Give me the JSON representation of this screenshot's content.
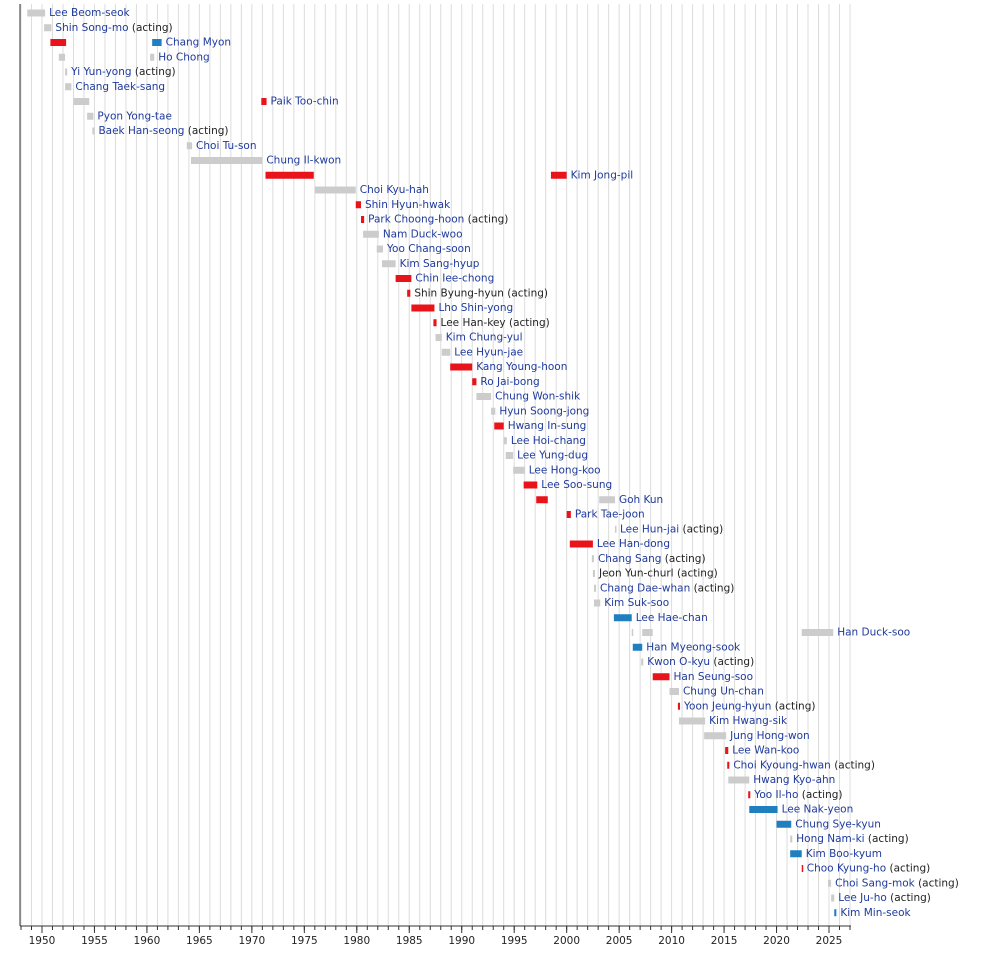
{
  "chart_data": {
    "type": "timeline",
    "xlim": [
      1948,
      2027
    ],
    "xticks": [
      1950,
      1955,
      1960,
      1965,
      1970,
      1975,
      1980,
      1985,
      1990,
      1995,
      2000,
      2005,
      2010,
      2015,
      2020,
      2025
    ],
    "xgrid": [
      1948,
      1949,
      1950,
      1951,
      1952,
      1953,
      1954,
      1955,
      1956,
      1957,
      1958,
      1959,
      1960,
      1961,
      1962,
      1963,
      1964,
      1965,
      1966,
      1967,
      1968,
      1969,
      1970,
      1971,
      1972,
      1973,
      1974,
      1975,
      1976,
      1977,
      1978,
      1979,
      1980,
      1981,
      1982,
      1983,
      1984,
      1985,
      1986,
      1987,
      1988,
      1989,
      1990,
      1991,
      1992,
      1993,
      1994,
      1995,
      1996,
      1997,
      1998,
      1999,
      2000,
      2001,
      2002,
      2003,
      2004,
      2005,
      2006,
      2007,
      2008,
      2009,
      2010,
      2011,
      2012,
      2013,
      2014,
      2015,
      2016,
      2017,
      2018,
      2019,
      2020,
      2021,
      2022,
      2023,
      2024,
      2025,
      2026,
      2027
    ],
    "grid": true,
    "link_color": "#1f3a9c",
    "text_color": "#222222",
    "rows": [
      {
        "name": "Lee Beom-seok",
        "link": true,
        "bars": [
          [
            1948.6,
            1950.3,
            "#cccccc"
          ]
        ]
      },
      {
        "name": "Shin Song-mo",
        "suffix": "(acting)",
        "link": true,
        "bars": [
          [
            1950.2,
            1950.9,
            "#cccccc"
          ]
        ]
      },
      {
        "name": "Chang Myon",
        "link": true,
        "bars": [
          [
            1950.8,
            1952.3,
            "#e8141a"
          ],
          [
            1960.5,
            1961.4,
            "#1f7fbf"
          ]
        ]
      },
      {
        "name": "Ho Chong",
        "link": true,
        "bars": [
          [
            1951.6,
            1952.2,
            "#cccccc"
          ],
          [
            1960.3,
            1960.7,
            "#cccccc"
          ]
        ]
      },
      {
        "name": "Yi Yun-yong",
        "suffix": "(acting)",
        "link": true,
        "bars": [
          [
            1952.2,
            1952.4,
            "#cccccc"
          ]
        ]
      },
      {
        "name": "Chang Taek-sang",
        "link": true,
        "bars": [
          [
            1952.2,
            1952.8,
            "#cccccc"
          ]
        ]
      },
      {
        "name": "Paik Too-chin",
        "link": true,
        "bars": [
          [
            1953.0,
            1954.5,
            "#cccccc"
          ],
          [
            1970.9,
            1971.4,
            "#e8141a"
          ]
        ]
      },
      {
        "name": "Pyon Yong-tae",
        "link": true,
        "bars": [
          [
            1954.3,
            1954.9,
            "#cccccc"
          ]
        ]
      },
      {
        "name": "Baek Han-seong",
        "suffix": "(acting)",
        "link": true,
        "bars": [
          [
            1954.8,
            1955.0,
            "#cccccc"
          ]
        ]
      },
      {
        "name": "Choi Tu-son",
        "link": true,
        "bars": [
          [
            1963.8,
            1964.3,
            "#cccccc"
          ]
        ]
      },
      {
        "name": "Chung Il-kwon",
        "link": true,
        "bars": [
          [
            1964.2,
            1971.0,
            "#cccccc"
          ]
        ]
      },
      {
        "name": "Kim Jong-pil",
        "link": true,
        "bars": [
          [
            1971.3,
            1975.9,
            "#e8141a"
          ],
          [
            1998.5,
            2000.0,
            "#e8141a"
          ]
        ]
      },
      {
        "name": "Choi Kyu-hah",
        "link": true,
        "bars": [
          [
            1976.0,
            1979.9,
            "#cccccc"
          ]
        ]
      },
      {
        "name": "Shin Hyun-hwak",
        "link": true,
        "bars": [
          [
            1979.9,
            1980.4,
            "#e8141a"
          ]
        ]
      },
      {
        "name": "Park Choong-hoon",
        "suffix": "(acting)",
        "link": true,
        "bars": [
          [
            1980.4,
            1980.7,
            "#e8141a"
          ]
        ]
      },
      {
        "name": "Nam Duck-woo",
        "link": true,
        "bars": [
          [
            1980.6,
            1982.1,
            "#cccccc"
          ]
        ]
      },
      {
        "name": "Yoo Chang-soon",
        "link": true,
        "bars": [
          [
            1981.9,
            1982.5,
            "#cccccc"
          ]
        ]
      },
      {
        "name": "Kim Sang-hyup",
        "link": true,
        "bars": [
          [
            1982.4,
            1983.7,
            "#cccccc"
          ]
        ]
      },
      {
        "name": "Chin Iee-chong",
        "link": true,
        "bars": [
          [
            1983.7,
            1985.2,
            "#e8141a"
          ]
        ]
      },
      {
        "name": "Shin Byung-hyun",
        "suffix": "(acting)",
        "link": false,
        "bars": [
          [
            1984.8,
            1985.1,
            "#e8141a"
          ]
        ]
      },
      {
        "name": "Lho Shin-yong",
        "link": true,
        "bars": [
          [
            1985.2,
            1987.4,
            "#e8141a"
          ]
        ]
      },
      {
        "name": "Lee Han-key",
        "suffix": "(acting)",
        "link": false,
        "bars": [
          [
            1987.3,
            1987.6,
            "#e8141a"
          ]
        ]
      },
      {
        "name": "Kim Chung-yul",
        "link": true,
        "bars": [
          [
            1987.5,
            1988.1,
            "#cccccc"
          ]
        ]
      },
      {
        "name": "Lee Hyun-jae",
        "link": true,
        "bars": [
          [
            1988.1,
            1988.9,
            "#cccccc"
          ]
        ]
      },
      {
        "name": "Kang Young-hoon",
        "link": true,
        "bars": [
          [
            1988.9,
            1991.0,
            "#e8141a"
          ]
        ]
      },
      {
        "name": "Ro Jai-bong",
        "link": true,
        "bars": [
          [
            1991.0,
            1991.4,
            "#e8141a"
          ]
        ]
      },
      {
        "name": "Chung Won-shik",
        "link": true,
        "bars": [
          [
            1991.4,
            1992.8,
            "#cccccc"
          ]
        ]
      },
      {
        "name": "Hyun Soong-jong",
        "link": true,
        "bars": [
          [
            1992.8,
            1993.2,
            "#cccccc"
          ]
        ]
      },
      {
        "name": "Hwang In-sung",
        "link": true,
        "bars": [
          [
            1993.1,
            1994.0,
            "#e8141a"
          ]
        ]
      },
      {
        "name": "Lee Hoi-chang",
        "link": true,
        "bars": [
          [
            1994.0,
            1994.3,
            "#cccccc"
          ]
        ]
      },
      {
        "name": "Lee Yung-dug",
        "link": true,
        "bars": [
          [
            1994.2,
            1994.9,
            "#cccccc"
          ]
        ]
      },
      {
        "name": "Lee Hong-koo",
        "link": true,
        "bars": [
          [
            1994.9,
            1996.0,
            "#cccccc"
          ]
        ]
      },
      {
        "name": "Lee Soo-sung",
        "link": true,
        "bars": [
          [
            1995.9,
            1997.2,
            "#e8141a"
          ]
        ]
      },
      {
        "name": "Goh Kun",
        "link": true,
        "bars": [
          [
            1997.1,
            1998.2,
            "#e8141a"
          ],
          [
            2003.1,
            2004.6,
            "#cccccc"
          ]
        ]
      },
      {
        "name": "Park Tae-joon",
        "link": true,
        "bars": [
          [
            2000.0,
            2000.4,
            "#e8141a"
          ]
        ]
      },
      {
        "name": "Lee Hun-jai",
        "suffix": "(acting)",
        "link": true,
        "bars": [
          [
            2004.6,
            2004.7,
            "#cccccc"
          ]
        ]
      },
      {
        "name": "Lee Han-dong",
        "link": true,
        "bars": [
          [
            2000.3,
            2002.5,
            "#e8141a"
          ]
        ]
      },
      {
        "name": "Chang Sang",
        "suffix": "(acting)",
        "link": true,
        "bars": [
          [
            2002.4,
            2002.6,
            "#cccccc"
          ]
        ]
      },
      {
        "name": "Jeon Yun-churl",
        "suffix": "(acting)",
        "link": false,
        "bars": [
          [
            2002.5,
            2002.7,
            "#cccccc"
          ]
        ]
      },
      {
        "name": "Chang Dae-whan",
        "suffix": "(acting)",
        "link": true,
        "bars": [
          [
            2002.6,
            2002.8,
            "#cccccc"
          ]
        ]
      },
      {
        "name": "Kim Suk-soo",
        "link": true,
        "bars": [
          [
            2002.6,
            2003.2,
            "#cccccc"
          ]
        ]
      },
      {
        "name": "Lee Hae-chan",
        "link": true,
        "bars": [
          [
            2004.5,
            2006.2,
            "#1f7fbf"
          ]
        ]
      },
      {
        "name": "Han Duck-soo",
        "link": true,
        "bars": [
          [
            2006.2,
            2006.3,
            "#cccccc"
          ],
          [
            2007.2,
            2008.2,
            "#cccccc"
          ],
          [
            2022.4,
            2025.4,
            "#cccccc"
          ]
        ]
      },
      {
        "name": "Han Myeong-sook",
        "link": true,
        "bars": [
          [
            2006.3,
            2007.2,
            "#1f7fbf"
          ]
        ]
      },
      {
        "name": "Kwon O-kyu",
        "suffix": "(acting)",
        "link": true,
        "bars": [
          [
            2007.1,
            2007.3,
            "#cccccc"
          ]
        ]
      },
      {
        "name": "Han Seung-soo",
        "link": true,
        "bars": [
          [
            2008.2,
            2009.8,
            "#e8141a"
          ]
        ]
      },
      {
        "name": "Chung Un-chan",
        "link": true,
        "bars": [
          [
            2009.8,
            2010.7,
            "#cccccc"
          ]
        ]
      },
      {
        "name": "Yoon Jeung-hyun",
        "suffix": "(acting)",
        "link": true,
        "bars": [
          [
            2010.6,
            2010.8,
            "#e8141a"
          ]
        ]
      },
      {
        "name": "Kim Hwang-sik",
        "link": true,
        "bars": [
          [
            2010.7,
            2013.2,
            "#cccccc"
          ]
        ]
      },
      {
        "name": "Jung Hong-won",
        "link": true,
        "bars": [
          [
            2013.1,
            2015.2,
            "#cccccc"
          ]
        ]
      },
      {
        "name": "Lee Wan-koo",
        "link": true,
        "bars": [
          [
            2015.1,
            2015.4,
            "#e8141a"
          ]
        ]
      },
      {
        "name": "Choi Kyoung-hwan",
        "suffix": "(acting)",
        "link": true,
        "bars": [
          [
            2015.3,
            2015.5,
            "#e8141a"
          ]
        ]
      },
      {
        "name": "Hwang Kyo-ahn",
        "link": true,
        "bars": [
          [
            2015.4,
            2017.4,
            "#cccccc"
          ]
        ]
      },
      {
        "name": "Yoo Il-ho",
        "suffix": "(acting)",
        "link": true,
        "bars": [
          [
            2017.3,
            2017.5,
            "#e8141a"
          ]
        ]
      },
      {
        "name": "Lee Nak-yeon",
        "link": true,
        "bars": [
          [
            2017.4,
            2020.1,
            "#1f7fbf"
          ]
        ]
      },
      {
        "name": "Chung Sye-kyun",
        "link": true,
        "bars": [
          [
            2020.0,
            2021.4,
            "#1f7fbf"
          ]
        ]
      },
      {
        "name": "Hong Nam-ki",
        "suffix": "(acting)",
        "link": true,
        "bars": [
          [
            2021.3,
            2021.5,
            "#cccccc"
          ]
        ]
      },
      {
        "name": "Kim Boo-kyum",
        "link": true,
        "bars": [
          [
            2021.3,
            2022.4,
            "#1f7fbf"
          ]
        ]
      },
      {
        "name": "Choo Kyung-ho",
        "suffix": "(acting)",
        "link": true,
        "bars": [
          [
            2022.4,
            2022.5,
            "#e8141a"
          ]
        ]
      },
      {
        "name": "Choi Sang-mok",
        "suffix": "(acting)",
        "link": true,
        "bars": [
          [
            2024.9,
            2025.2,
            "#cccccc"
          ]
        ]
      },
      {
        "name": "Lee Ju-ho",
        "suffix": "(acting)",
        "link": true,
        "bars": [
          [
            2025.2,
            2025.5,
            "#cccccc"
          ]
        ]
      },
      {
        "name": "Kim Min-seok",
        "link": true,
        "bars": [
          [
            2025.5,
            2025.7,
            "#1f7fbf"
          ]
        ]
      }
    ]
  }
}
